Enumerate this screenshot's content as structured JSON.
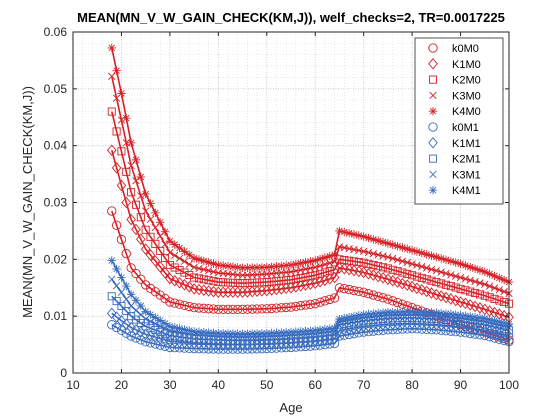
{
  "chart_data": {
    "type": "line",
    "title": "MEAN(MN_V_W_GAIN_CHECK(KM,J)), welf_checks=2, TR=0.0017225",
    "xlabel": "Age",
    "ylabel": "MEAN(MN_V_W_GAIN_CHECK(KM,J))",
    "xlim": [
      10,
      100
    ],
    "ylim": [
      0,
      0.06
    ],
    "xticks": [
      "10",
      "20",
      "30",
      "40",
      "50",
      "60",
      "70",
      "80",
      "90",
      "100"
    ],
    "yticks": [
      "0",
      "0.01",
      "0.02",
      "0.03",
      "0.04",
      "0.05",
      "0.06"
    ],
    "grid": true,
    "legend_position": "top-right",
    "colors": {
      "M0": "#d62027",
      "M1": "#3a6dbf"
    },
    "age_start": 18,
    "age_end": 100,
    "series": [
      {
        "name": "k0M0",
        "marker": "circle",
        "color": "#d62027",
        "points": [
          [
            18,
            0.0285
          ],
          [
            20,
            0.0235
          ],
          [
            22,
            0.0185
          ],
          [
            25,
            0.0155
          ],
          [
            30,
            0.0125
          ],
          [
            35,
            0.0115
          ],
          [
            40,
            0.0112
          ],
          [
            45,
            0.0112
          ],
          [
            50,
            0.0113
          ],
          [
            55,
            0.0116
          ],
          [
            60,
            0.0122
          ],
          [
            64,
            0.0132
          ],
          [
            65,
            0.015
          ],
          [
            70,
            0.0142
          ],
          [
            75,
            0.013
          ],
          [
            80,
            0.0115
          ],
          [
            85,
            0.01
          ],
          [
            90,
            0.0085
          ],
          [
            95,
            0.0072
          ],
          [
            100,
            0.0058
          ]
        ]
      },
      {
        "name": "K1M0",
        "marker": "diamond",
        "color": "#d62027",
        "points": [
          [
            18,
            0.0392
          ],
          [
            20,
            0.033
          ],
          [
            22,
            0.027
          ],
          [
            25,
            0.0218
          ],
          [
            30,
            0.0166
          ],
          [
            35,
            0.0148
          ],
          [
            40,
            0.0142
          ],
          [
            45,
            0.0142
          ],
          [
            50,
            0.0145
          ],
          [
            55,
            0.015
          ],
          [
            60,
            0.0158
          ],
          [
            64,
            0.0168
          ],
          [
            65,
            0.0185
          ],
          [
            70,
            0.0177
          ],
          [
            75,
            0.0165
          ],
          [
            80,
            0.0152
          ],
          [
            85,
            0.0138
          ],
          [
            90,
            0.0125
          ],
          [
            95,
            0.0112
          ],
          [
            100,
            0.0098
          ]
        ]
      },
      {
        "name": "K2M0",
        "marker": "square",
        "color": "#d62027",
        "points": [
          [
            18,
            0.046
          ],
          [
            20,
            0.039
          ],
          [
            22,
            0.0318
          ],
          [
            25,
            0.0252
          ],
          [
            30,
            0.019
          ],
          [
            35,
            0.0168
          ],
          [
            40,
            0.016
          ],
          [
            45,
            0.0158
          ],
          [
            50,
            0.016
          ],
          [
            55,
            0.0164
          ],
          [
            60,
            0.0172
          ],
          [
            64,
            0.0182
          ],
          [
            65,
            0.02
          ],
          [
            70,
            0.0194
          ],
          [
            75,
            0.0184
          ],
          [
            80,
            0.0172
          ],
          [
            85,
            0.016
          ],
          [
            90,
            0.0148
          ],
          [
            95,
            0.0136
          ],
          [
            100,
            0.0122
          ]
        ]
      },
      {
        "name": "K3M0",
        "marker": "x",
        "color": "#d62027",
        "points": [
          [
            18,
            0.0522
          ],
          [
            20,
            0.0445
          ],
          [
            22,
            0.0365
          ],
          [
            25,
            0.0285
          ],
          [
            30,
            0.0212
          ],
          [
            35,
            0.0186
          ],
          [
            40,
            0.0176
          ],
          [
            45,
            0.0172
          ],
          [
            50,
            0.0174
          ],
          [
            55,
            0.0178
          ],
          [
            60,
            0.0186
          ],
          [
            64,
            0.0196
          ],
          [
            65,
            0.0222
          ],
          [
            70,
            0.0214
          ],
          [
            75,
            0.0204
          ],
          [
            80,
            0.0192
          ],
          [
            85,
            0.018
          ],
          [
            90,
            0.0168
          ],
          [
            95,
            0.0156
          ],
          [
            100,
            0.014
          ]
        ]
      },
      {
        "name": "K4M0",
        "marker": "star",
        "color": "#d62027",
        "points": [
          [
            18,
            0.0572
          ],
          [
            20,
            0.0492
          ],
          [
            22,
            0.0405
          ],
          [
            25,
            0.0315
          ],
          [
            30,
            0.0232
          ],
          [
            35,
            0.0202
          ],
          [
            40,
            0.019
          ],
          [
            45,
            0.0185
          ],
          [
            50,
            0.0186
          ],
          [
            55,
            0.019
          ],
          [
            60,
            0.0198
          ],
          [
            64,
            0.0208
          ],
          [
            65,
            0.025
          ],
          [
            70,
            0.024
          ],
          [
            75,
            0.0228
          ],
          [
            80,
            0.0216
          ],
          [
            85,
            0.0204
          ],
          [
            90,
            0.0192
          ],
          [
            95,
            0.0178
          ],
          [
            100,
            0.016
          ]
        ]
      },
      {
        "name": "k0M1",
        "marker": "circle",
        "color": "#3a6dbf",
        "points": [
          [
            18,
            0.0085
          ],
          [
            20,
            0.0075
          ],
          [
            22,
            0.0065
          ],
          [
            25,
            0.0055
          ],
          [
            30,
            0.0045
          ],
          [
            35,
            0.0043
          ],
          [
            40,
            0.0042
          ],
          [
            45,
            0.0042
          ],
          [
            50,
            0.0043
          ],
          [
            55,
            0.0045
          ],
          [
            60,
            0.0048
          ],
          [
            64,
            0.0052
          ],
          [
            65,
            0.0065
          ],
          [
            70,
            0.0072
          ],
          [
            75,
            0.0076
          ],
          [
            80,
            0.0078
          ],
          [
            85,
            0.0076
          ],
          [
            90,
            0.0072
          ],
          [
            95,
            0.0066
          ],
          [
            100,
            0.0055
          ]
        ]
      },
      {
        "name": "K1M1",
        "marker": "diamond",
        "color": "#3a6dbf",
        "points": [
          [
            18,
            0.0105
          ],
          [
            20,
            0.0092
          ],
          [
            22,
            0.008
          ],
          [
            25,
            0.0068
          ],
          [
            30,
            0.0056
          ],
          [
            35,
            0.0052
          ],
          [
            40,
            0.005
          ],
          [
            45,
            0.005
          ],
          [
            50,
            0.0051
          ],
          [
            55,
            0.0053
          ],
          [
            60,
            0.0056
          ],
          [
            64,
            0.006
          ],
          [
            65,
            0.0075
          ],
          [
            70,
            0.0082
          ],
          [
            75,
            0.0086
          ],
          [
            80,
            0.0087
          ],
          [
            85,
            0.0085
          ],
          [
            90,
            0.0081
          ],
          [
            95,
            0.0075
          ],
          [
            100,
            0.0065
          ]
        ]
      },
      {
        "name": "K2M1",
        "marker": "square",
        "color": "#3a6dbf",
        "points": [
          [
            18,
            0.0135
          ],
          [
            20,
            0.0118
          ],
          [
            22,
            0.01
          ],
          [
            25,
            0.0082
          ],
          [
            30,
            0.0066
          ],
          [
            35,
            0.006
          ],
          [
            40,
            0.0058
          ],
          [
            45,
            0.0057
          ],
          [
            50,
            0.0058
          ],
          [
            55,
            0.006
          ],
          [
            60,
            0.0063
          ],
          [
            64,
            0.0067
          ],
          [
            65,
            0.0085
          ],
          [
            70,
            0.0092
          ],
          [
            75,
            0.0096
          ],
          [
            80,
            0.0097
          ],
          [
            85,
            0.0095
          ],
          [
            90,
            0.0091
          ],
          [
            95,
            0.0085
          ],
          [
            100,
            0.0075
          ]
        ]
      },
      {
        "name": "K3M1",
        "marker": "x",
        "color": "#3a6dbf",
        "points": [
          [
            18,
            0.0165
          ],
          [
            20,
            0.0142
          ],
          [
            22,
            0.0118
          ],
          [
            25,
            0.0095
          ],
          [
            30,
            0.0074
          ],
          [
            35,
            0.0067
          ],
          [
            40,
            0.0064
          ],
          [
            45,
            0.0063
          ],
          [
            50,
            0.0064
          ],
          [
            55,
            0.0066
          ],
          [
            60,
            0.0069
          ],
          [
            64,
            0.0073
          ],
          [
            65,
            0.009
          ],
          [
            70,
            0.0097
          ],
          [
            75,
            0.0101
          ],
          [
            80,
            0.0102
          ],
          [
            85,
            0.01
          ],
          [
            90,
            0.0096
          ],
          [
            95,
            0.009
          ],
          [
            100,
            0.008
          ]
        ]
      },
      {
        "name": "K4M1",
        "marker": "star",
        "color": "#3a6dbf",
        "points": [
          [
            18,
            0.0198
          ],
          [
            20,
            0.0168
          ],
          [
            22,
            0.0138
          ],
          [
            25,
            0.0108
          ],
          [
            30,
            0.0082
          ],
          [
            35,
            0.0073
          ],
          [
            40,
            0.007
          ],
          [
            45,
            0.0069
          ],
          [
            50,
            0.007
          ],
          [
            55,
            0.0072
          ],
          [
            60,
            0.0075
          ],
          [
            64,
            0.0079
          ],
          [
            65,
            0.0095
          ],
          [
            70,
            0.0103
          ],
          [
            75,
            0.0107
          ],
          [
            80,
            0.0108
          ],
          [
            85,
            0.0106
          ],
          [
            90,
            0.0102
          ],
          [
            95,
            0.0096
          ],
          [
            100,
            0.0086
          ]
        ]
      }
    ]
  }
}
